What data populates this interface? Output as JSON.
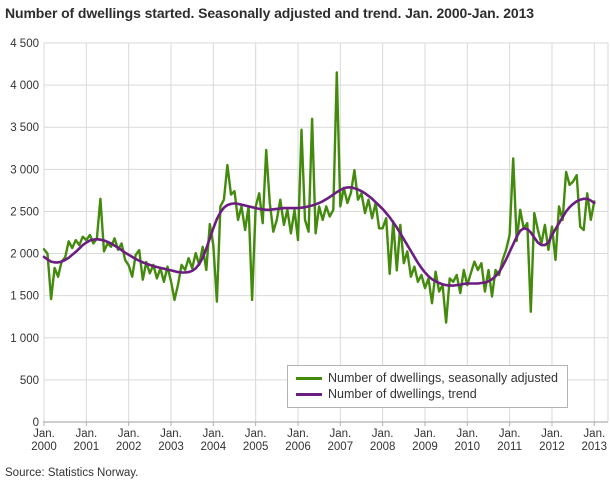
{
  "title": "Number of dwellings started. Seasonally adjusted and trend. Jan. 2000-Jan. 2013",
  "source": "Source: Statistics Norway.",
  "colors": {
    "seasonally_adjusted": "#438a0d",
    "trend": "#6c1d80",
    "grid": "#d9d9d9",
    "axis": "#b0b0b0",
    "text": "#333333"
  },
  "chart_data": {
    "type": "line",
    "title": "Number of dwellings started. Seasonally adjusted and trend. Jan. 2000-Jan. 2013",
    "xlabel": "",
    "ylabel": "",
    "ylim": [
      0,
      4500
    ],
    "grid": true,
    "legend_position": "bottom-center-inside",
    "x_unit": "month",
    "x_range": [
      "Jan. 2000",
      "Jan. 2013"
    ],
    "y_ticks": [
      {
        "value": 0,
        "label": "0"
      },
      {
        "value": 500,
        "label": "500"
      },
      {
        "value": 1000,
        "label": "1 000"
      },
      {
        "value": 1500,
        "label": "1 500"
      },
      {
        "value": 2000,
        "label": "2 000"
      },
      {
        "value": 2500,
        "label": "2 500"
      },
      {
        "value": 3000,
        "label": "3 000"
      },
      {
        "value": 3500,
        "label": "3 500"
      },
      {
        "value": 4000,
        "label": "4 000"
      },
      {
        "value": 4500,
        "label": "4 500"
      }
    ],
    "x_ticks": [
      {
        "line1": "Jan.",
        "line2": "2000"
      },
      {
        "line1": "Jan.",
        "line2": "2001"
      },
      {
        "line1": "Jan.",
        "line2": "2002"
      },
      {
        "line1": "Jan.",
        "line2": "2003"
      },
      {
        "line1": "Jan.",
        "line2": "2004"
      },
      {
        "line1": "Jan.",
        "line2": "2005"
      },
      {
        "line1": "Jan.",
        "line2": "2006"
      },
      {
        "line1": "Jan.",
        "line2": "2007"
      },
      {
        "line1": "Jan.",
        "line2": "2008"
      },
      {
        "line1": "Jan.",
        "line2": "2009"
      },
      {
        "line1": "Jan.",
        "line2": "2010"
      },
      {
        "line1": "Jan.",
        "line2": "2011"
      },
      {
        "line1": "Jan.",
        "line2": "2012"
      },
      {
        "line1": "Jan.",
        "line2": "2013"
      }
    ],
    "series": [
      {
        "name": "Number of dwellings, seasonally adjusted",
        "color": "#438a0d",
        "width": 2.4,
        "values": [
          2050,
          2000,
          1460,
          1830,
          1725,
          1905,
          1955,
          2145,
          2065,
          2160,
          2100,
          2200,
          2160,
          2220,
          2120,
          2180,
          2650,
          2025,
          2120,
          2080,
          2180,
          2045,
          2120,
          1925,
          1860,
          1725,
          1985,
          2040,
          1690,
          1900,
          1765,
          1865,
          1705,
          1825,
          1665,
          1845,
          1670,
          1450,
          1630,
          1865,
          1805,
          1945,
          1825,
          2005,
          1865,
          2080,
          1805,
          2350,
          2100,
          1430,
          2560,
          2640,
          3050,
          2700,
          2740,
          2400,
          2560,
          2280,
          2560,
          1450,
          2560,
          2715,
          2360,
          3230,
          2600,
          2260,
          2400,
          2640,
          2340,
          2520,
          2240,
          2520,
          2160,
          3470,
          2400,
          2260,
          3600,
          2240,
          2560,
          2400,
          2560,
          2440,
          2520,
          4150,
          2560,
          2780,
          2600,
          2720,
          2990,
          2640,
          2715,
          2480,
          2640,
          2420,
          2600,
          2300,
          2300,
          2420,
          1760,
          2380,
          1800,
          2340,
          1885,
          2025,
          1725,
          1845,
          1665,
          1745,
          1590,
          1705,
          1410,
          1785,
          1550,
          1625,
          1180,
          1705,
          1665,
          1745,
          1530,
          1805,
          1625,
          1765,
          1905,
          1805,
          1885,
          1550,
          1805,
          1490,
          1805,
          1745,
          1925,
          2045,
          2220,
          3130,
          2150,
          2520,
          2300,
          2360,
          1310,
          2480,
          2280,
          2120,
          2340,
          2045,
          2320,
          1925,
          2560,
          2400,
          2970,
          2815,
          2855,
          2930,
          2320,
          2280,
          2715,
          2400,
          2620
        ]
      },
      {
        "name": "Number of dwellings, trend",
        "color": "#6c1d80",
        "width": 2.6,
        "values": [
          1960,
          1930,
          1905,
          1895,
          1895,
          1905,
          1925,
          1950,
          1985,
          2020,
          2060,
          2100,
          2130,
          2155,
          2165,
          2170,
          2165,
          2155,
          2140,
          2120,
          2095,
          2070,
          2040,
          2010,
          1985,
          1960,
          1935,
          1915,
          1895,
          1880,
          1865,
          1850,
          1840,
          1830,
          1820,
          1810,
          1800,
          1790,
          1780,
          1775,
          1775,
          1780,
          1795,
          1825,
          1875,
          1950,
          2060,
          2180,
          2300,
          2410,
          2490,
          2545,
          2575,
          2590,
          2595,
          2590,
          2580,
          2570,
          2560,
          2550,
          2540,
          2530,
          2525,
          2520,
          2520,
          2525,
          2530,
          2535,
          2540,
          2540,
          2540,
          2540,
          2540,
          2545,
          2550,
          2560,
          2570,
          2585,
          2600,
          2620,
          2645,
          2670,
          2700,
          2730,
          2755,
          2775,
          2785,
          2785,
          2775,
          2760,
          2740,
          2715,
          2685,
          2650,
          2610,
          2570,
          2530,
          2480,
          2430,
          2370,
          2310,
          2240,
          2170,
          2100,
          2030,
          1960,
          1890,
          1830,
          1775,
          1730,
          1695,
          1670,
          1650,
          1635,
          1625,
          1620,
          1620,
          1625,
          1630,
          1640,
          1645,
          1645,
          1645,
          1645,
          1650,
          1655,
          1670,
          1695,
          1730,
          1780,
          1850,
          1930,
          2020,
          2110,
          2200,
          2270,
          2300,
          2290,
          2250,
          2190,
          2130,
          2100,
          2100,
          2130,
          2220,
          2290,
          2360,
          2430,
          2500,
          2550,
          2590,
          2620,
          2640,
          2650,
          2650,
          2630,
          2600
        ]
      }
    ]
  },
  "legend": {
    "items": [
      {
        "label": "Number of dwellings, seasonally adjusted"
      },
      {
        "label": "Number of dwellings, trend"
      }
    ]
  }
}
